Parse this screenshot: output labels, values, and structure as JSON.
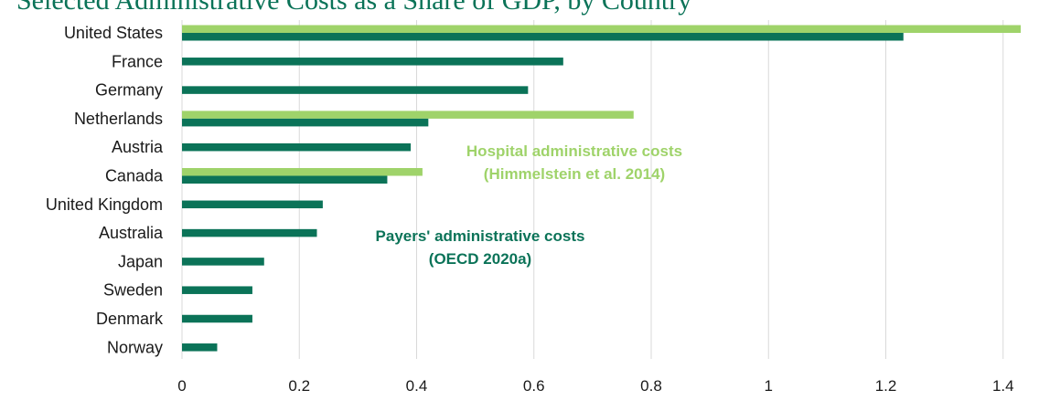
{
  "chart_data": {
    "type": "bar",
    "orientation": "horizontal",
    "title": "Selected Administrative Costs as a Share of GDP, by Country",
    "xlabel": "",
    "ylabel": "",
    "xlim": [
      0,
      1.43
    ],
    "xticks": [
      "0",
      "0.2",
      "0.4",
      "0.6",
      "0.8",
      "1",
      "1.2",
      "1.4"
    ],
    "grid": true,
    "legend": "none",
    "categories": [
      "United States",
      "France",
      "Germany",
      "Netherlands",
      "Austria",
      "Canada",
      "United Kingdom",
      "Australia",
      "Japan",
      "Sweden",
      "Denmark",
      "Norway"
    ],
    "series": [
      {
        "key": "hospital",
        "color": "#9fd36a",
        "values": [
          1.43,
          null,
          null,
          0.77,
          null,
          0.41,
          null,
          null,
          null,
          null,
          null,
          null
        ]
      },
      {
        "key": "payers",
        "color": "#0b7358",
        "values": [
          1.23,
          0.65,
          0.59,
          0.42,
          0.39,
          0.35,
          0.24,
          0.23,
          0.14,
          0.12,
          0.12,
          0.06
        ]
      }
    ],
    "annotations": [
      {
        "series": "hospital",
        "lines": [
          "Hospital administrative costs",
          "(Himmelstein et al. 2014)"
        ]
      },
      {
        "series": "payers",
        "lines": [
          "Payers' administrative costs",
          "(OECD 2020a)"
        ]
      }
    ]
  }
}
